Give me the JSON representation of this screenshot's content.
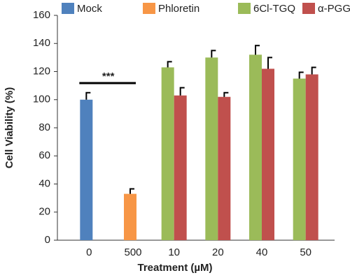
{
  "chart_data": {
    "type": "bar",
    "categories": [
      "0",
      "500",
      "10",
      "20",
      "40",
      "50"
    ],
    "series": [
      {
        "name": "Mock",
        "color": "#4f81bd",
        "values": [
          100,
          null,
          null,
          null,
          null,
          null
        ],
        "errors": [
          5,
          null,
          null,
          null,
          null,
          null
        ]
      },
      {
        "name": "Phloretin",
        "color": "#f79646",
        "values": [
          null,
          33,
          null,
          null,
          null,
          null
        ],
        "errors": [
          null,
          3.5,
          null,
          null,
          null,
          null
        ]
      },
      {
        "name": "6Cl-TGQ",
        "color": "#9bbb59",
        "values": [
          null,
          null,
          123,
          130,
          132,
          115
        ],
        "errors": [
          null,
          null,
          4,
          5,
          6.5,
          4.5
        ]
      },
      {
        "name": "α-PGG",
        "color": "#c0504d",
        "values": [
          null,
          null,
          103,
          102,
          122,
          118
        ],
        "errors": [
          null,
          null,
          5.5,
          3,
          8,
          5
        ]
      }
    ],
    "xlabel": "Treatment (µM)",
    "ylabel": "Cell Viability (%)",
    "annotation": "***",
    "ylim": [
      0,
      160
    ],
    "yticks": [
      0,
      20,
      40,
      60,
      80,
      100,
      120,
      140,
      160
    ],
    "legend": "top"
  }
}
